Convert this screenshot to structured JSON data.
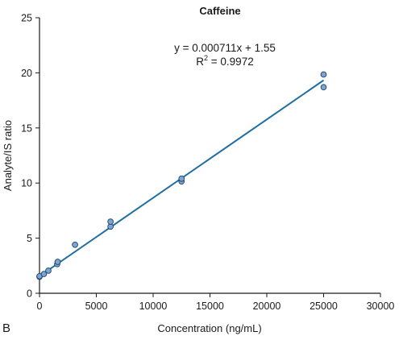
{
  "chart_data": {
    "type": "scatter",
    "title": "Caffeine",
    "xlabel": "Concentration (ng/mL)",
    "ylabel": "Analyte/IS ratio",
    "xlim": [
      0,
      30000
    ],
    "ylim": [
      0,
      25
    ],
    "x_ticks": [
      0,
      5000,
      10000,
      15000,
      20000,
      25000,
      30000
    ],
    "y_ticks": [
      0,
      5,
      10,
      15,
      20,
      25
    ],
    "x_tick_labels": [
      "0",
      "5000",
      "10000",
      "15000",
      "20000",
      "25000",
      "30000"
    ],
    "y_tick_labels": [
      "0",
      "5",
      "10",
      "15",
      "20",
      "25"
    ],
    "grid": false,
    "panel_label": "B",
    "equation": "y = 0.000711x + 1.55",
    "r2_label": "R",
    "r2_sup": "2",
    "r2_value": " = 0.9972",
    "points": [
      {
        "x": 0,
        "y": 1.5
      },
      {
        "x": 0,
        "y": 1.55
      },
      {
        "x": 390,
        "y": 1.75
      },
      {
        "x": 780,
        "y": 2.05
      },
      {
        "x": 1560,
        "y": 2.65
      },
      {
        "x": 1600,
        "y": 2.85
      },
      {
        "x": 3125,
        "y": 4.4
      },
      {
        "x": 6250,
        "y": 6.05
      },
      {
        "x": 6250,
        "y": 6.5
      },
      {
        "x": 12500,
        "y": 10.15
      },
      {
        "x": 12500,
        "y": 10.4
      },
      {
        "x": 25000,
        "y": 18.7
      },
      {
        "x": 25000,
        "y": 19.85
      }
    ],
    "fit": {
      "slope": 0.000711,
      "intercept": 1.55,
      "x_range": [
        0,
        25000
      ]
    },
    "colors": {
      "point_fill": "#7aa6d1",
      "point_stroke": "#1f3f66",
      "line": "#1f6fa3",
      "axis": "#1a1a1a"
    }
  }
}
